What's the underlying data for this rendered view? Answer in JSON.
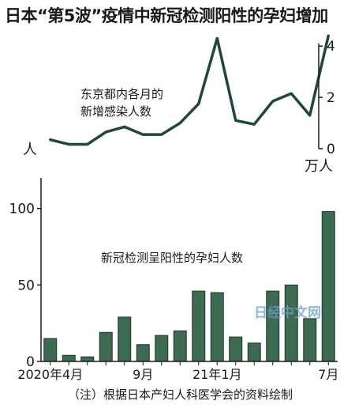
{
  "title": "日本“第5波”疫情中新冠检测阳性的孕妇增加",
  "note": "（注）根据日本产妇人科医学会的资料绘制",
  "watermark": "日经中文网",
  "colors": {
    "line": "#1e4a33",
    "bar": "#3d6b52",
    "bar_edge": "#1c3528",
    "axis": "#1a1a1a"
  },
  "chart_data": [
    {
      "type": "line",
      "label": "东京都内各月的\n新增感染人数",
      "unit_label": "万人",
      "y_tick_labels": [
        "0",
        "2",
        "4"
      ],
      "ylim": [
        0,
        4.5
      ],
      "x": [
        "2020-04",
        "2020-05",
        "2020-06",
        "2020-07",
        "2020-08",
        "2020-09",
        "2020-10",
        "2020-11",
        "2020-12",
        "2021-01",
        "2021-02",
        "2021-03",
        "2021-04",
        "2021-05",
        "2021-06",
        "2021-07"
      ],
      "values": [
        0.35,
        0.17,
        0.17,
        0.65,
        0.85,
        0.55,
        0.55,
        1.0,
        1.75,
        4.3,
        1.1,
        0.95,
        1.85,
        2.15,
        1.3,
        4.4
      ]
    },
    {
      "type": "bar",
      "label": "新冠检测呈阳性的孕妇人数",
      "unit_label": "人",
      "y_tick_labels": [
        "0",
        "50",
        "100"
      ],
      "ylim": [
        0,
        120
      ],
      "x": [
        "2020-04",
        "2020-05",
        "2020-06",
        "2020-07",
        "2020-08",
        "2020-09",
        "2020-10",
        "2020-11",
        "2020-12",
        "2021-01",
        "2021-02",
        "2021-03",
        "2021-04",
        "2021-05",
        "2021-06",
        "2021-07"
      ],
      "values": [
        15,
        4,
        3,
        19,
        29,
        11,
        17,
        20,
        46,
        45,
        16,
        12,
        46,
        50,
        28,
        98
      ],
      "x_tick_labels": [
        {
          "index": 0,
          "text": "2020年4月"
        },
        {
          "index": 5,
          "text": "9月"
        },
        {
          "index": 9,
          "text": "21年1月"
        },
        {
          "index": 15,
          "text": "7月"
        }
      ]
    }
  ]
}
